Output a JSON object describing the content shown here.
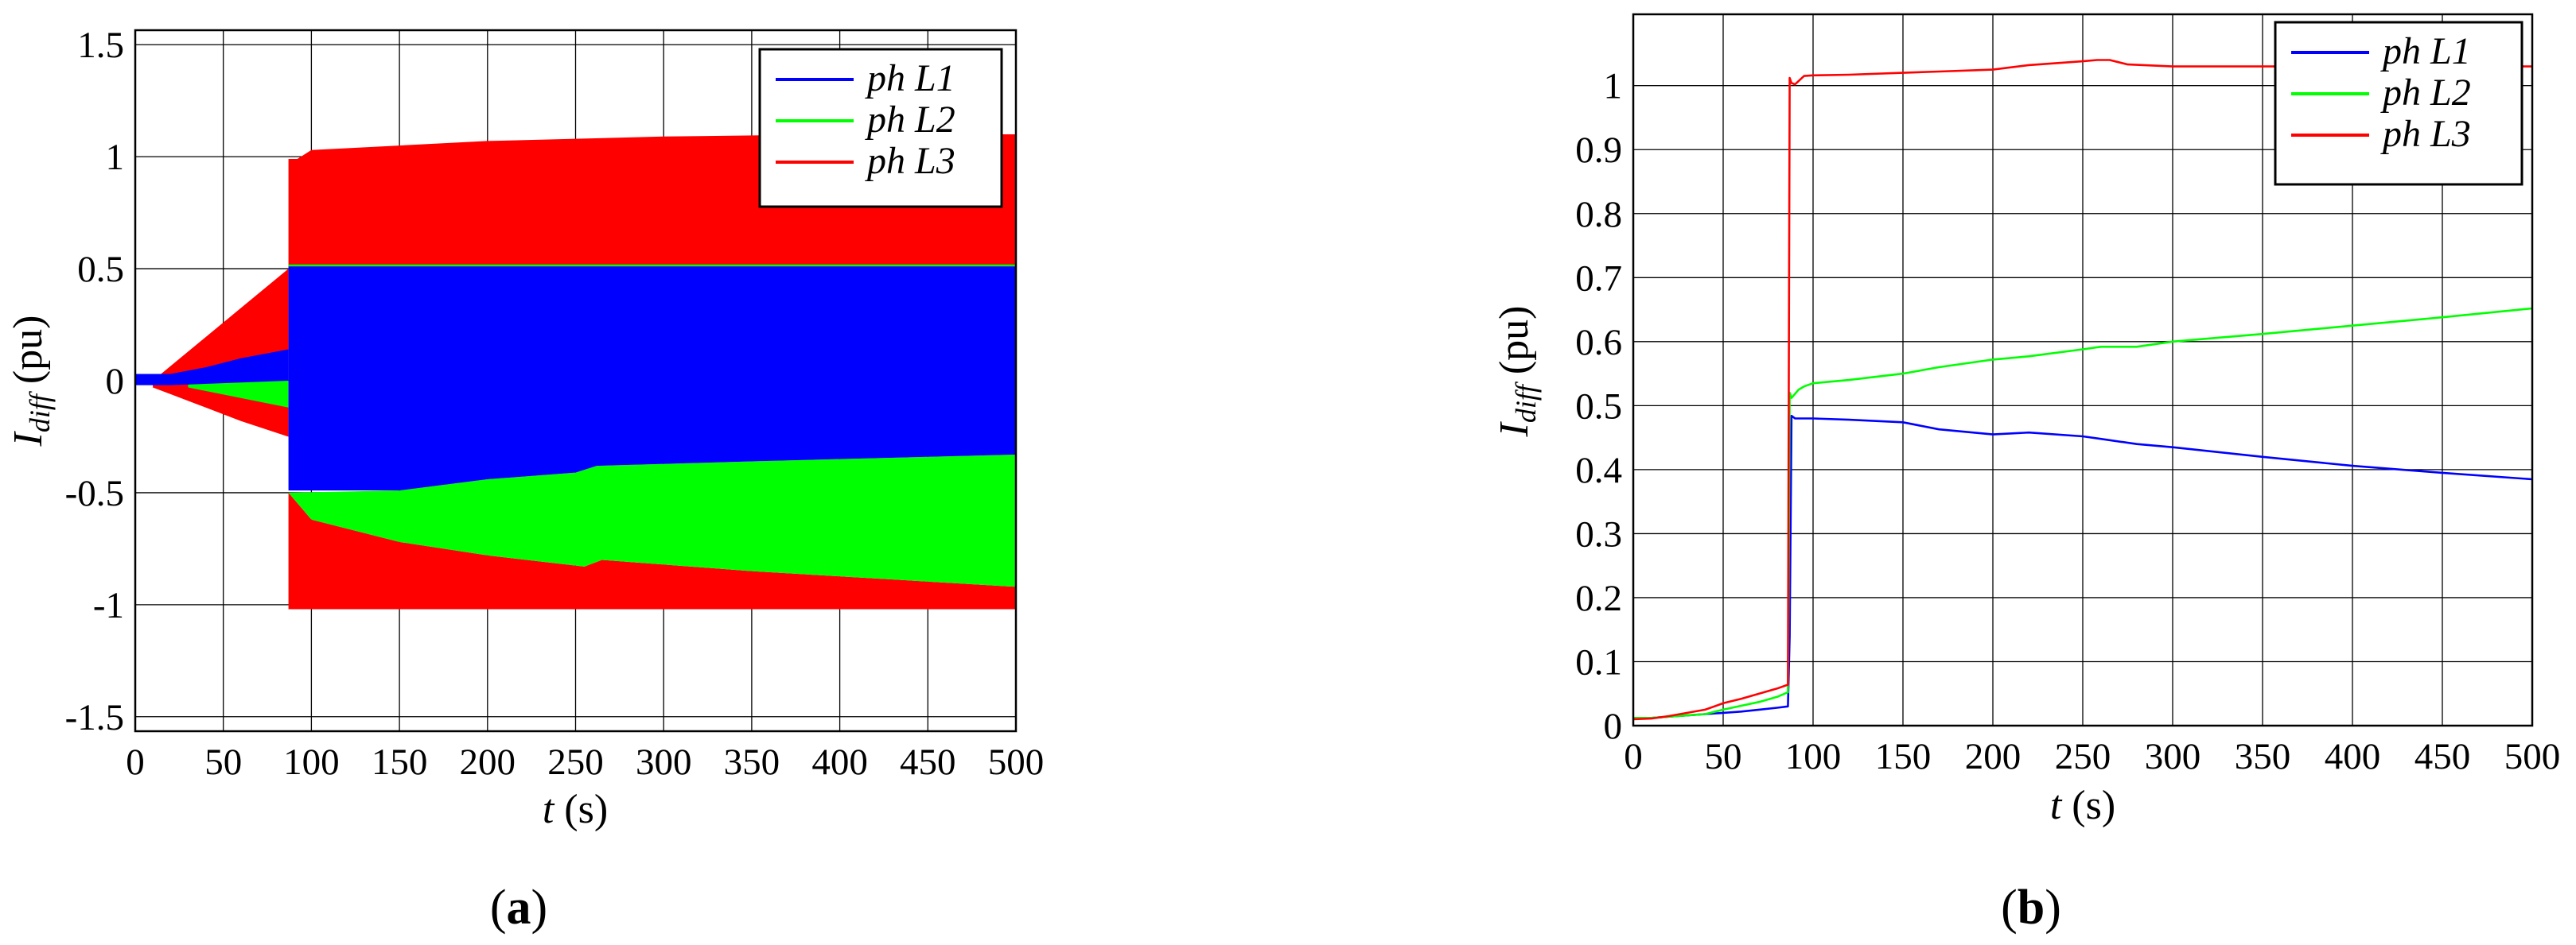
{
  "figure": {
    "panels": [
      {
        "label_open": "(",
        "label_text": "a",
        "label_close": ")"
      },
      {
        "label_open": "(",
        "label_text": "b",
        "label_close": ")"
      }
    ]
  },
  "chart_data": [
    {
      "type": "area",
      "title": "",
      "xlabel_var": "t",
      "xlabel_unit": "(s)",
      "ylabel_var": "I",
      "ylabel_sub": "diff",
      "ylabel_unit": "(pu)",
      "xlim": [
        0,
        500
      ],
      "ylim": [
        -1.5647,
        1.5647
      ],
      "xticks": [
        0,
        50,
        100,
        150,
        200,
        250,
        300,
        350,
        400,
        450,
        500
      ],
      "xtick_labels": [
        "0",
        "50",
        "100",
        "150",
        "200",
        "250",
        "300",
        "350",
        "400",
        "450",
        "500"
      ],
      "yticks": [
        -1.5,
        -1,
        -0.5,
        0,
        0.5,
        1,
        1.5
      ],
      "ytick_labels": [
        "-1.5",
        "-1",
        "-0.5",
        "0",
        "0.5",
        "1",
        "1.5"
      ],
      "grid": true,
      "legend_position": "top-right",
      "series": [
        {
          "name": "ph L3",
          "color": "#ff0000",
          "upper": [
            [
              10,
              0.0
            ],
            [
              87,
              0.0
            ],
            [
              87,
              0.99
            ],
            [
              92,
              0.99
            ],
            [
              100,
              1.03
            ],
            [
              150,
              1.05
            ],
            [
              200,
              1.07
            ],
            [
              250,
              1.08
            ],
            [
              300,
              1.09
            ],
            [
              400,
              1.1
            ],
            [
              500,
              1.1
            ]
          ],
          "lower": [
            [
              10,
              -0.03
            ],
            [
              20,
              -0.06
            ],
            [
              40,
              -0.12
            ],
            [
              60,
              -0.18
            ],
            [
              87,
              -0.25
            ],
            [
              87,
              -1.02
            ],
            [
              150,
              -1.02
            ],
            [
              300,
              -1.02
            ],
            [
              500,
              -1.02
            ]
          ],
          "gap_upper": [
            [
              87,
              0.0
            ],
            [
              87,
              0.0
            ]
          ],
          "gap_lower": [
            [
              87,
              -0.5
            ],
            [
              100,
              -0.62
            ],
            [
              150,
              -0.72
            ],
            [
              200,
              -0.78
            ],
            [
              255,
              -0.83
            ],
            [
              265,
              -0.8
            ],
            [
              350,
              -0.85
            ],
            [
              500,
              -0.92
            ]
          ]
        },
        {
          "name": "ph L2",
          "color": "#00ff00",
          "upper": [
            [
              10,
              0.0
            ],
            [
              87,
              0.0
            ],
            [
              87,
              0.52
            ],
            [
              200,
              0.52
            ],
            [
              500,
              0.52
            ]
          ],
          "lower": [
            [
              30,
              -0.03
            ],
            [
              87,
              -0.12
            ],
            [
              87,
              -0.92
            ],
            [
              500,
              -0.92
            ]
          ],
          "env_lower": [
            [
              87,
              -0.5
            ],
            [
              100,
              -0.62
            ],
            [
              150,
              -0.72
            ],
            [
              200,
              -0.78
            ],
            [
              255,
              -0.83
            ],
            [
              265,
              -0.8
            ],
            [
              350,
              -0.85
            ],
            [
              500,
              -0.92
            ]
          ],
          "env_upper": [
            [
              87,
              -0.5
            ],
            [
              150,
              -0.49
            ],
            [
              200,
              -0.44
            ],
            [
              250,
              -0.41
            ],
            [
              262,
              -0.38
            ],
            [
              350,
              -0.36
            ],
            [
              500,
              -0.33
            ]
          ]
        },
        {
          "name": "ph L1",
          "color": "#0000ff",
          "upper": [
            [
              0,
              0.03
            ],
            [
              20,
              0.03
            ],
            [
              40,
              0.06
            ],
            [
              60,
              0.1
            ],
            [
              87,
              0.14
            ],
            [
              87,
              0.51
            ],
            [
              500,
              0.51
            ]
          ],
          "lower": [
            [
              0,
              -0.02
            ],
            [
              20,
              -0.02
            ],
            [
              87,
              0.0
            ],
            [
              87,
              -0.49
            ],
            [
              150,
              -0.49
            ],
            [
              200,
              -0.44
            ],
            [
              250,
              -0.41
            ],
            [
              262,
              -0.38
            ],
            [
              350,
              -0.36
            ],
            [
              500,
              -0.33
            ]
          ]
        }
      ]
    },
    {
      "type": "line",
      "title": "",
      "xlabel_var": "t",
      "xlabel_unit": "(s)",
      "ylabel_var": "I",
      "ylabel_sub": "diff",
      "ylabel_unit": "(pu)",
      "xlim": [
        0,
        500
      ],
      "ylim": [
        0,
        1.1114
      ],
      "xticks": [
        0,
        50,
        100,
        150,
        200,
        250,
        300,
        350,
        400,
        450,
        500
      ],
      "xtick_labels": [
        "0",
        "50",
        "100",
        "150",
        "200",
        "250",
        "300",
        "350",
        "400",
        "450",
        "500"
      ],
      "yticks": [
        0,
        0.1,
        0.2,
        0.3,
        0.4,
        0.5,
        0.6,
        0.7,
        0.8,
        0.9,
        1
      ],
      "ytick_labels": [
        "0",
        "0.1",
        "0.2",
        "0.3",
        "0.4",
        "0.5",
        "0.6",
        "0.7",
        "0.8",
        "0.9",
        "1"
      ],
      "grid": true,
      "legend_position": "top-right",
      "series": [
        {
          "name": "ph L1",
          "color": "#0000ff",
          "x": [
            0,
            10,
            20,
            30,
            40,
            50,
            60,
            70,
            80,
            86,
            87,
            88,
            90,
            100,
            120,
            150,
            170,
            200,
            220,
            250,
            260,
            280,
            300,
            350,
            400,
            450,
            500
          ],
          "y": [
            0.012,
            0.012,
            0.014,
            0.016,
            0.018,
            0.02,
            0.022,
            0.025,
            0.028,
            0.03,
            0.14,
            0.484,
            0.48,
            0.48,
            0.478,
            0.474,
            0.463,
            0.455,
            0.458,
            0.452,
            0.448,
            0.44,
            0.435,
            0.42,
            0.406,
            0.395,
            0.385
          ]
        },
        {
          "name": "ph L2",
          "color": "#00ff00",
          "x": [
            0,
            10,
            20,
            30,
            40,
            50,
            60,
            70,
            80,
            86,
            87,
            88,
            92,
            95,
            100,
            120,
            150,
            170,
            200,
            220,
            250,
            260,
            280,
            300,
            350,
            400,
            450,
            500
          ],
          "y": [
            0.012,
            0.012,
            0.014,
            0.016,
            0.018,
            0.025,
            0.031,
            0.037,
            0.045,
            0.052,
            0.52,
            0.512,
            0.525,
            0.53,
            0.535,
            0.54,
            0.55,
            0.56,
            0.572,
            0.577,
            0.588,
            0.592,
            0.592,
            0.6,
            0.612,
            0.625,
            0.638,
            0.652
          ]
        },
        {
          "name": "ph L3",
          "color": "#ff0000",
          "x": [
            0,
            10,
            20,
            30,
            40,
            50,
            60,
            70,
            80,
            86,
            87,
            88,
            90,
            95,
            100,
            120,
            150,
            170,
            200,
            220,
            250,
            258,
            265,
            275,
            300,
            350,
            400,
            450,
            500
          ],
          "y": [
            0.01,
            0.011,
            0.015,
            0.02,
            0.025,
            0.035,
            0.042,
            0.05,
            0.058,
            0.064,
            1.012,
            1.004,
            1.002,
            1.015,
            1.016,
            1.017,
            1.02,
            1.022,
            1.025,
            1.032,
            1.038,
            1.04,
            1.04,
            1.033,
            1.03,
            1.03,
            1.03,
            1.03,
            1.03
          ]
        }
      ]
    }
  ]
}
